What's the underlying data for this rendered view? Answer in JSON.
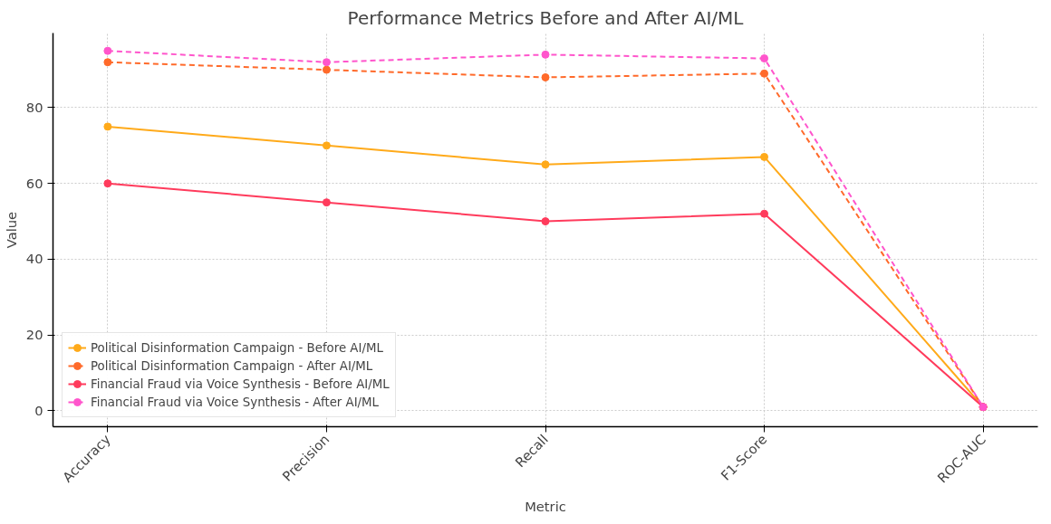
{
  "chart_data": {
    "type": "line",
    "title": "Performance Metrics Before and After AI/ML",
    "xlabel": "Metric",
    "ylabel": "Value",
    "categories": [
      "Accuracy",
      "Precision",
      "Recall",
      "F1-Score",
      "ROC-AUC"
    ],
    "series": [
      {
        "name": "Political Disinformation Campaign - Before AI/ML",
        "color": "#ffaa1a",
        "values": [
          75,
          70,
          65,
          67,
          1
        ],
        "line_style": "solid"
      },
      {
        "name": "Political Disinformation Campaign - After AI/ML",
        "color": "#ff6a2a",
        "values": [
          92,
          90,
          88,
          89,
          1
        ],
        "line_style": "dashed"
      },
      {
        "name": "Financial Fraud via Voice Synthesis - Before AI/ML",
        "color": "#ff3b5c",
        "values": [
          60,
          55,
          50,
          52,
          1
        ],
        "line_style": "solid"
      },
      {
        "name": "Financial Fraud via Voice Synthesis - After AI/ML",
        "color": "#ff55cc",
        "values": [
          95,
          92,
          94,
          93,
          1
        ],
        "line_style": "dashed"
      }
    ],
    "ylim": [
      -4.2,
      99.7
    ],
    "yticks": [
      0,
      20,
      40,
      60,
      80
    ],
    "grid": true,
    "legend": "bottom left",
    "marker": "circle"
  }
}
